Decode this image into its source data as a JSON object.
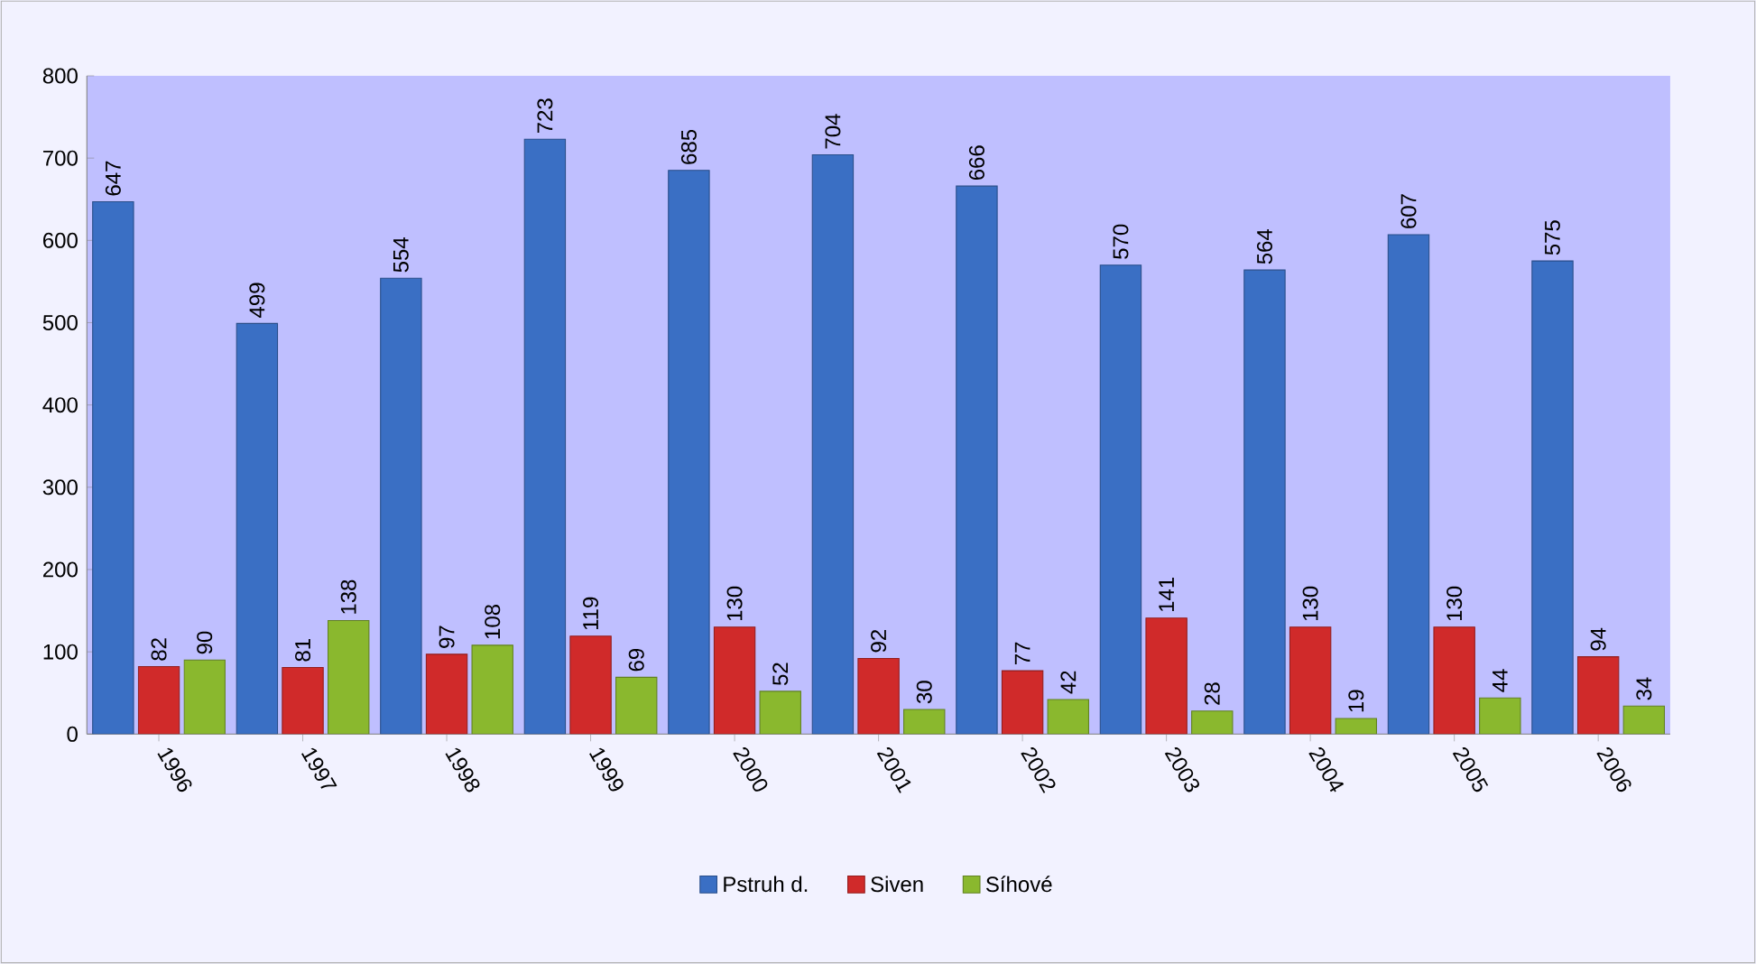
{
  "chart_data": {
    "type": "bar",
    "categories": [
      "1996",
      "1997",
      "1998",
      "1999",
      "2000",
      "2001",
      "2002",
      "2003",
      "2004",
      "2005",
      "2006"
    ],
    "series": [
      {
        "name": "Pstruh d.",
        "color": "#3a6fc4",
        "values": [
          647,
          499,
          554,
          723,
          685,
          704,
          666,
          570,
          564,
          607,
          575
        ]
      },
      {
        "name": "Siven",
        "color": "#d02a2a",
        "values": [
          82,
          81,
          97,
          119,
          130,
          92,
          77,
          141,
          130,
          130,
          94
        ]
      },
      {
        "name": "Síhové",
        "color": "#8ab82e",
        "values": [
          90,
          138,
          108,
          69,
          52,
          30,
          42,
          28,
          19,
          44,
          34
        ]
      }
    ],
    "ylim": [
      0,
      800
    ],
    "yticks": [
      0,
      100,
      200,
      300,
      400,
      500,
      600,
      700,
      800
    ],
    "data_labels": true,
    "legend": "bottom",
    "grid": false
  }
}
